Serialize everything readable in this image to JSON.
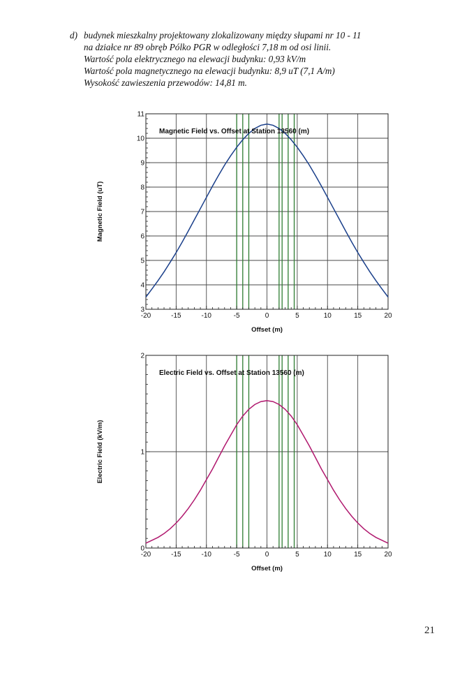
{
  "header": {
    "marker": "d)",
    "lines": [
      "budynek mieszkalny projektowany zlokalizowany między słupami nr 10 - 11",
      "na działce nr 89 obręb Pólko PGR w odległości 7,18 m od osi linii.",
      "Wartość pola elektrycznego na elewacji budynku: 0,93 kV/m",
      "Wartość pola magnetycznego na elewacji budynku: 8,9 uT (7,1 A/m)",
      "Wysokość zawieszenia przewodów: 14,81 m."
    ]
  },
  "page_number": "21",
  "chart_data": [
    {
      "type": "line",
      "title": "Magnetic Field vs. Offset at Station 13560 (m)",
      "xlabel": "Offset (m)",
      "ylabel": "Magnetic Field (uT)",
      "xlim": [
        -20,
        20
      ],
      "ylim": [
        3,
        11
      ],
      "xticks": [
        "-20",
        "-15",
        "-10",
        "-5",
        "0",
        "5",
        "10",
        "15",
        "20"
      ],
      "yticks": [
        "3",
        "4",
        "5",
        "6",
        "7",
        "8",
        "9",
        "10",
        "11"
      ],
      "grid": true,
      "series_color": "#1a3f8a",
      "marker_color": "#2e7d32",
      "marker_lines_x": [
        -5,
        -4,
        -3,
        2,
        2.5,
        3.5,
        4.5
      ],
      "x": [
        -20,
        -19,
        -18,
        -17,
        -16,
        -15,
        -14,
        -13,
        -12,
        -11,
        -10,
        -9,
        -8,
        -7,
        -6,
        -5,
        -4,
        -3,
        -2,
        -1,
        0,
        1,
        2,
        3,
        4,
        5,
        6,
        7,
        8,
        9,
        10,
        11,
        12,
        13,
        14,
        15,
        16,
        17,
        18,
        19,
        20
      ],
      "series": [
        {
          "values": [
            3.5,
            3.83,
            4.17,
            4.53,
            4.92,
            5.32,
            5.75,
            6.2,
            6.66,
            7.12,
            7.58,
            8.04,
            8.48,
            8.9,
            9.28,
            9.63,
            9.94,
            10.2,
            10.4,
            10.53,
            10.58,
            10.53,
            10.4,
            10.2,
            9.94,
            9.63,
            9.28,
            8.9,
            8.48,
            8.04,
            7.58,
            7.12,
            6.66,
            6.2,
            5.75,
            5.32,
            4.92,
            4.53,
            4.17,
            3.83,
            3.5
          ]
        }
      ]
    },
    {
      "type": "line",
      "title": "Electric Field vs. Offset at Station 13560 (m)",
      "xlabel": "Offset (m)",
      "ylabel": "Electric Field (kV/m)",
      "xlim": [
        -20,
        20
      ],
      "ylim": [
        0,
        2
      ],
      "xticks": [
        "-20",
        "-15",
        "-10",
        "-5",
        "0",
        "5",
        "10",
        "15",
        "20"
      ],
      "yticks": [
        "0",
        "1",
        "2"
      ],
      "grid": true,
      "series_color": "#b0186e",
      "marker_color": "#2e7d32",
      "marker_lines_x": [
        -5,
        -4,
        -3,
        2,
        2.5,
        3.5,
        4.5
      ],
      "x": [
        -20,
        -19,
        -18,
        -17,
        -16,
        -15,
        -14,
        -13,
        -12,
        -11,
        -10,
        -9,
        -8,
        -7,
        -6,
        -5,
        -4,
        -3,
        -2,
        -1,
        0,
        1,
        2,
        3,
        4,
        5,
        6,
        7,
        8,
        9,
        10,
        11,
        12,
        13,
        14,
        15,
        16,
        17,
        18,
        19,
        20
      ],
      "series": [
        {
          "values": [
            0.05,
            0.08,
            0.11,
            0.15,
            0.2,
            0.26,
            0.33,
            0.41,
            0.5,
            0.6,
            0.71,
            0.82,
            0.94,
            1.06,
            1.17,
            1.28,
            1.37,
            1.44,
            1.49,
            1.52,
            1.53,
            1.52,
            1.49,
            1.44,
            1.37,
            1.28,
            1.17,
            1.06,
            0.94,
            0.82,
            0.71,
            0.6,
            0.5,
            0.41,
            0.33,
            0.26,
            0.2,
            0.15,
            0.11,
            0.08,
            0.05
          ]
        }
      ]
    }
  ]
}
